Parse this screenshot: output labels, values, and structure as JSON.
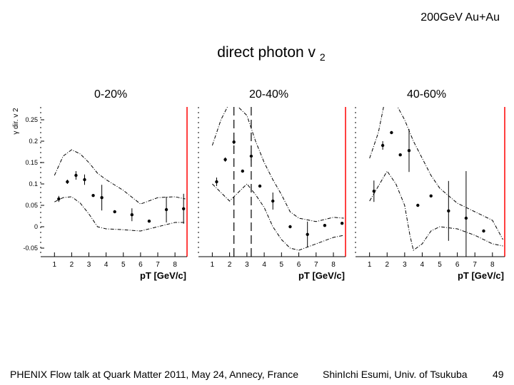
{
  "slide": {
    "header_right": "200GeV Au+Au",
    "title_main": "direct photon v",
    "title_sub": "2",
    "footer_left": "PHENIX Flow talk at Quark Matter 2011, May 24, Annecy, France",
    "footer_mid": "ShinIchi Esumi, Univ. of Tsukuba",
    "page_number": "49"
  },
  "chart_data": [
    {
      "type": "scatter",
      "title": "0-20%",
      "ylabel": "γ dir. v 2",
      "xlabel": "pT [GeV/c]",
      "xlim": [
        0.2,
        8.7
      ],
      "ylim": [
        -0.07,
        0.28
      ],
      "xticks": [
        1,
        2,
        3,
        4,
        5,
        6,
        7,
        8
      ],
      "yticks": [
        -0.05,
        0,
        0.05,
        0.1,
        0.15,
        0.2,
        0.25
      ],
      "points": [
        {
          "x": 1.25,
          "y": 0.065,
          "err": 0.007
        },
        {
          "x": 1.75,
          "y": 0.105,
          "err": 0.005
        },
        {
          "x": 2.25,
          "y": 0.12,
          "err": 0.01
        },
        {
          "x": 2.75,
          "y": 0.11,
          "err": 0.012
        },
        {
          "x": 3.25,
          "y": 0.073,
          "err": 0
        },
        {
          "x": 3.75,
          "y": 0.068,
          "err": 0.03
        },
        {
          "x": 4.5,
          "y": 0.035,
          "err": 0
        },
        {
          "x": 5.5,
          "y": 0.028,
          "err": 0.015
        },
        {
          "x": 6.5,
          "y": 0.013,
          "err": 0
        },
        {
          "x": 7.5,
          "y": 0.04,
          "err": 0.03
        },
        {
          "x": 8.5,
          "y": 0.042,
          "err": 0.035
        }
      ],
      "band_upper": [
        [
          1.0,
          0.12
        ],
        [
          1.5,
          0.165
        ],
        [
          2.0,
          0.18
        ],
        [
          2.5,
          0.17
        ],
        [
          3.0,
          0.15
        ],
        [
          3.5,
          0.125
        ],
        [
          4.0,
          0.11
        ],
        [
          5.0,
          0.085
        ],
        [
          6.0,
          0.053
        ],
        [
          7.0,
          0.068
        ],
        [
          8.0,
          0.07
        ],
        [
          8.6,
          0.065
        ]
      ],
      "band_lower": [
        [
          1.0,
          0.058
        ],
        [
          1.5,
          0.068
        ],
        [
          2.0,
          0.07
        ],
        [
          2.5,
          0.055
        ],
        [
          3.0,
          0.03
        ],
        [
          3.5,
          0.0
        ],
        [
          4.0,
          -0.005
        ],
        [
          5.0,
          -0.007
        ],
        [
          6.0,
          -0.01
        ],
        [
          7.0,
          0.0
        ],
        [
          8.0,
          0.01
        ],
        [
          8.6,
          0.01
        ]
      ]
    },
    {
      "type": "scatter",
      "title": "20-40%",
      "xlabel": "pT [GeV/c]",
      "xlim": [
        0.2,
        8.7
      ],
      "ylim": [
        -0.07,
        0.28
      ],
      "xticks": [
        1,
        2,
        3,
        4,
        5,
        6,
        7,
        8
      ],
      "points": [
        {
          "x": 1.25,
          "y": 0.105,
          "err": 0.01
        },
        {
          "x": 1.75,
          "y": 0.157,
          "err": 0.005
        },
        {
          "x": 2.25,
          "y": 0.198,
          "err": 0.005
        },
        {
          "x": 2.75,
          "y": 0.13,
          "err": 0
        },
        {
          "x": 3.25,
          "y": 0.165,
          "err": 0.012
        },
        {
          "x": 3.75,
          "y": 0.095,
          "err": 0
        },
        {
          "x": 4.5,
          "y": 0.06,
          "err": 0.02
        },
        {
          "x": 5.5,
          "y": 0.0,
          "err": 0
        },
        {
          "x": 6.5,
          "y": -0.018,
          "err": 0.03
        },
        {
          "x": 7.5,
          "y": 0.003,
          "err": 0
        },
        {
          "x": 8.5,
          "y": 0.008,
          "err": 0
        }
      ],
      "band_upper": [
        [
          1.0,
          0.19
        ],
        [
          1.5,
          0.25
        ],
        [
          2.0,
          0.29
        ],
        [
          2.5,
          0.28
        ],
        [
          3.0,
          0.26
        ],
        [
          3.5,
          0.2
        ],
        [
          4.0,
          0.15
        ],
        [
          4.5,
          0.11
        ],
        [
          5.0,
          0.075
        ],
        [
          5.5,
          0.035
        ],
        [
          6.0,
          0.02
        ],
        [
          7.0,
          0.012
        ],
        [
          8.0,
          0.022
        ],
        [
          8.6,
          0.02
        ]
      ],
      "band_lower": [
        [
          1.0,
          0.1
        ],
        [
          1.5,
          0.08
        ],
        [
          2.0,
          0.06
        ],
        [
          2.5,
          0.08
        ],
        [
          3.0,
          0.1
        ],
        [
          3.5,
          0.075
        ],
        [
          4.0,
          0.045
        ],
        [
          4.5,
          0.0
        ],
        [
          5.0,
          -0.03
        ],
        [
          5.5,
          -0.05
        ],
        [
          6.0,
          -0.055
        ],
        [
          7.0,
          -0.04
        ],
        [
          8.0,
          -0.025
        ],
        [
          8.6,
          -0.02
        ]
      ],
      "dashed_verticals": [
        2.25,
        3.25
      ]
    },
    {
      "type": "scatter",
      "title": "40-60%",
      "xlabel": "pT [GeV/c]",
      "xlim": [
        0.2,
        8.7
      ],
      "ylim": [
        -0.07,
        0.28
      ],
      "xticks": [
        1,
        2,
        3,
        4,
        5,
        6,
        7,
        8
      ],
      "points": [
        {
          "x": 1.25,
          "y": 0.083,
          "err": 0.025
        },
        {
          "x": 1.75,
          "y": 0.19,
          "err": 0.01
        },
        {
          "x": 2.25,
          "y": 0.22,
          "err": 0
        },
        {
          "x": 2.75,
          "y": 0.168,
          "err": 0
        },
        {
          "x": 3.25,
          "y": 0.178,
          "err": 0.05
        },
        {
          "x": 3.75,
          "y": 0.05,
          "err": 0
        },
        {
          "x": 4.5,
          "y": 0.072,
          "err": 0
        },
        {
          "x": 5.5,
          "y": 0.037,
          "err": 0.07
        },
        {
          "x": 6.5,
          "y": 0.02,
          "err": 0.11
        },
        {
          "x": 7.5,
          "y": -0.01,
          "err": 0
        }
      ],
      "band_upper": [
        [
          1.0,
          0.16
        ],
        [
          1.5,
          0.22
        ],
        [
          1.8,
          0.28
        ],
        [
          2.2,
          0.3
        ],
        [
          2.6,
          0.28
        ],
        [
          3.0,
          0.25
        ],
        [
          3.5,
          0.2
        ],
        [
          4.0,
          0.16
        ],
        [
          4.5,
          0.12
        ],
        [
          5.0,
          0.09
        ],
        [
          6.0,
          0.055
        ],
        [
          7.0,
          0.035
        ],
        [
          8.0,
          0.015
        ],
        [
          8.6,
          -0.03
        ]
      ],
      "band_lower": [
        [
          1.0,
          0.06
        ],
        [
          1.5,
          0.095
        ],
        [
          2.0,
          0.13
        ],
        [
          2.5,
          0.1
        ],
        [
          3.0,
          0.05
        ],
        [
          3.3,
          -0.02
        ],
        [
          3.5,
          -0.055
        ],
        [
          4.0,
          -0.04
        ],
        [
          4.5,
          -0.01
        ],
        [
          5.0,
          0.0
        ],
        [
          6.0,
          -0.005
        ],
        [
          7.0,
          -0.02
        ],
        [
          8.0,
          -0.04
        ],
        [
          8.6,
          -0.045
        ]
      ]
    }
  ]
}
